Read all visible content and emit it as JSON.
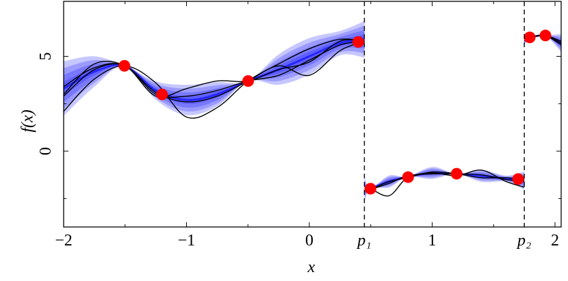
{
  "chart_data": {
    "type": "gp",
    "xlabel": "x",
    "ylabel": "f(x)",
    "xlim": [
      -2,
      2.05
    ],
    "ylim": [
      -4,
      7.9
    ],
    "xticks": [
      {
        "value": -2,
        "label": "−2"
      },
      {
        "value": -1,
        "label": "−1"
      },
      0,
      1,
      2
    ],
    "yticks": [
      0,
      5
    ],
    "xminorticks": [
      -1.5,
      -0.5,
      0.5,
      1.5
    ],
    "yminorticks": [
      -2.5,
      2.5
    ],
    "changepoints": [
      {
        "value": 0.448,
        "label": "p₁"
      },
      {
        "value": 1.75,
        "label": "p₂"
      }
    ],
    "band_color": "#0000ff",
    "sample_color": "#000000",
    "segments": [
      {
        "x": [
          -2,
          -1.75,
          -1.5,
          -1.25,
          -1,
          -0.75,
          -0.5,
          -0.25,
          0,
          0.25,
          0.45
        ],
        "mean": [
          3.3,
          4.2,
          4.5,
          3.2,
          2.7,
          3.0,
          3.7,
          4.3,
          5.0,
          5.7,
          5.9
        ],
        "std": [
          0.9,
          0.5,
          0.0,
          0.3,
          0.5,
          0.4,
          0.0,
          0.5,
          0.6,
          0.4,
          0.6
        ],
        "samples": [
          [
            2.1,
            3.8,
            4.5,
            3.6,
            1.8,
            2.3,
            3.7,
            4.6,
            5.4,
            5.9,
            5.8
          ],
          [
            2.9,
            4.3,
            4.5,
            3.0,
            2.9,
            3.2,
            3.7,
            4.0,
            4.8,
            5.6,
            5.8
          ],
          [
            3.4,
            4.4,
            4.5,
            2.9,
            3.3,
            3.7,
            3.7,
            4.3,
            4.7,
            5.8,
            5.8
          ],
          [
            3.0,
            4.6,
            4.5,
            3.1,
            2.6,
            2.9,
            3.7,
            4.5,
            4.0,
            5.3,
            5.8
          ]
        ]
      },
      {
        "x": [
          0.45,
          0.5,
          0.65,
          0.8,
          1.0,
          1.2,
          1.4,
          1.6,
          1.75
        ],
        "mean": [
          -2.0,
          -1.95,
          -1.6,
          -1.35,
          -1.15,
          -1.2,
          -1.3,
          -1.45,
          -1.55
        ],
        "std": [
          0.4,
          0.0,
          0.2,
          0.0,
          0.2,
          0.0,
          0.2,
          0.1,
          0.3
        ],
        "samples": [
          [
            -2.1,
            -2.0,
            -2.35,
            -1.4,
            -1.15,
            -1.3,
            -1.0,
            -1.6,
            -1.9
          ],
          [
            -1.9,
            -2.0,
            -1.6,
            -1.4,
            -1.1,
            -1.2,
            -1.4,
            -1.4,
            -1.5
          ],
          [
            -2.0,
            -2.0,
            -1.7,
            -1.3,
            -1.2,
            -1.2,
            -1.25,
            -1.5,
            -1.6
          ]
        ]
      },
      {
        "x": [
          1.75,
          1.8,
          1.92,
          2.05
        ],
        "mean": [
          5.9,
          6.0,
          6.1,
          5.7
        ],
        "std": [
          0.2,
          0.0,
          0.0,
          0.3
        ],
        "samples": [
          [
            5.8,
            6.0,
            6.1,
            5.6
          ],
          [
            6.0,
            6.0,
            6.1,
            5.8
          ],
          [
            5.9,
            6.0,
            6.1,
            5.7
          ]
        ]
      }
    ],
    "observations": {
      "color": "#ff0000",
      "x": [
        -1.505,
        -1.199,
        -0.498,
        0.398,
        0.498,
        0.804,
        1.199,
        1.7,
        1.794,
        1.922
      ],
      "y": [
        4.5,
        2.99,
        3.7,
        5.76,
        -1.98,
        -1.37,
        -1.19,
        -1.47,
        6.0,
        6.1
      ]
    }
  }
}
